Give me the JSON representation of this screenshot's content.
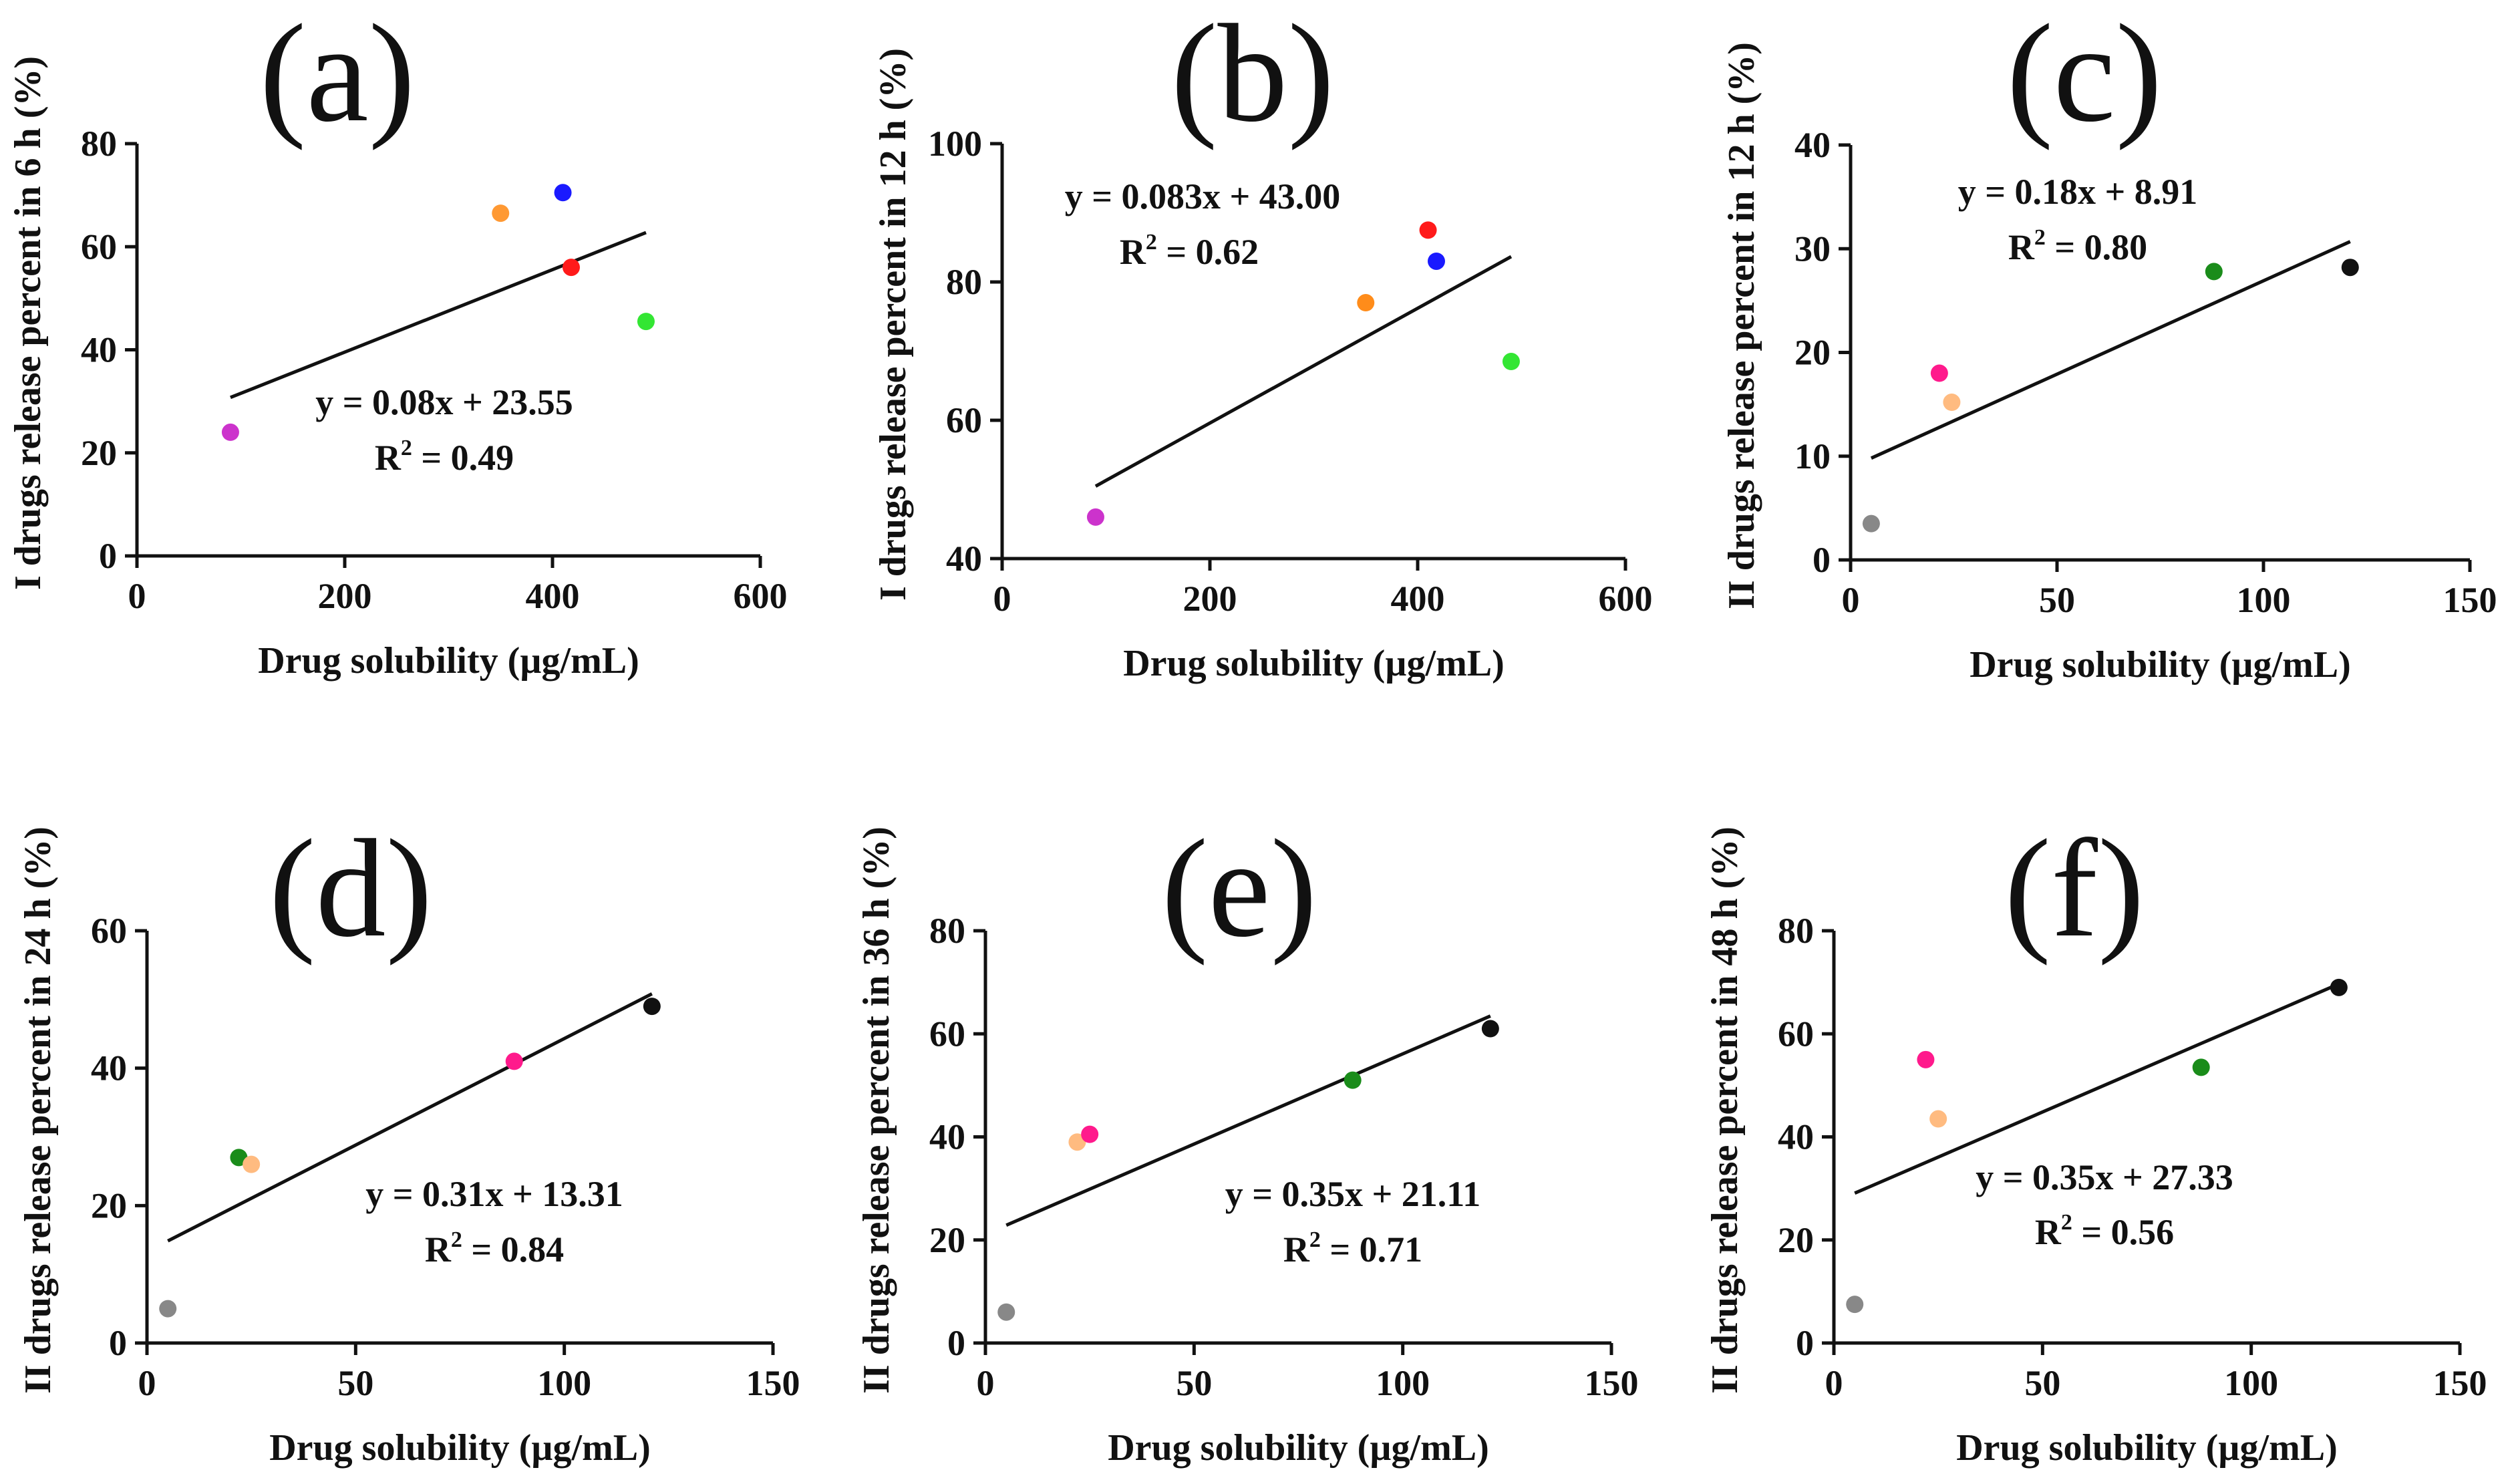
{
  "chart_data": [
    {
      "type": "scatter",
      "panel_label": "(a)",
      "title": "",
      "xlabel": "Drug solubility (µg/mL)",
      "ylabel": "I drugs release percent in 6 h (%)",
      "xlim": [
        0,
        600
      ],
      "ylim": [
        0,
        80
      ],
      "xticks": [
        "0",
        "200",
        "400",
        "600"
      ],
      "yticks": [
        "0",
        "20",
        "40",
        "60",
        "80"
      ],
      "points": [
        {
          "x": 90,
          "y": 24,
          "color": "#cc33cc"
        },
        {
          "x": 350,
          "y": 66.5,
          "color": "#ff9933"
        },
        {
          "x": 410,
          "y": 70.5,
          "color": "#1a1aff"
        },
        {
          "x": 418,
          "y": 56,
          "color": "#ff1a1a"
        },
        {
          "x": 490,
          "y": 45.5,
          "color": "#33e633"
        }
      ],
      "fit": {
        "slope": 0.08,
        "intercept": 23.55,
        "x_range": [
          90,
          490
        ]
      },
      "equation": "y = 0.08x + 23.55",
      "r2_prefix": "R",
      "r2_exp": "2",
      "r2_value": " = 0.49"
    },
    {
      "type": "scatter",
      "panel_label": "(b)",
      "title": "",
      "xlabel": "Drug solubility (µg/mL)",
      "ylabel": "I drugs release percent in 12 h (%)",
      "xlim": [
        0,
        600
      ],
      "ylim": [
        40,
        100
      ],
      "xticks": [
        "0",
        "200",
        "400",
        "600"
      ],
      "yticks": [
        "40",
        "60",
        "80",
        "100"
      ],
      "points": [
        {
          "x": 90,
          "y": 46,
          "color": "#cc33cc"
        },
        {
          "x": 350,
          "y": 77,
          "color": "#ff8c1a"
        },
        {
          "x": 410,
          "y": 87.5,
          "color": "#ff1a1a"
        },
        {
          "x": 418,
          "y": 83,
          "color": "#1a1aff"
        },
        {
          "x": 490,
          "y": 68.5,
          "color": "#33e633"
        }
      ],
      "fit": {
        "slope": 0.083,
        "intercept": 43.0,
        "x_range": [
          90,
          490
        ]
      },
      "equation": "y = 0.083x + 43.00",
      "r2_prefix": "R",
      "r2_exp": "2",
      "r2_value": " = 0.62"
    },
    {
      "type": "scatter",
      "panel_label": "(c)",
      "title": "",
      "xlabel": "Drug solubility (µg/mL)",
      "ylabel": "II drugs release percent in 12 h (%)",
      "xlim": [
        0,
        150
      ],
      "ylim": [
        0,
        40
      ],
      "xticks": [
        "0",
        "50",
        "100",
        "150"
      ],
      "yticks": [
        "0",
        "10",
        "20",
        "30",
        "40"
      ],
      "points": [
        {
          "x": 5,
          "y": 3.5,
          "color": "#888888"
        },
        {
          "x": 21.5,
          "y": 18,
          "color": "#ff1a8c"
        },
        {
          "x": 24.5,
          "y": 15.2,
          "color": "#ffbb80"
        },
        {
          "x": 88,
          "y": 27.8,
          "color": "#1a8c1a"
        },
        {
          "x": 121,
          "y": 28.2,
          "color": "#111111"
        }
      ],
      "fit": {
        "slope": 0.18,
        "intercept": 8.91,
        "x_range": [
          5,
          121
        ]
      },
      "equation": "y = 0.18x + 8.91",
      "r2_prefix": "R",
      "r2_exp": "2",
      "r2_value": " = 0.80"
    },
    {
      "type": "scatter",
      "panel_label": "(d)",
      "title": "",
      "xlabel": "Drug solubility (µg/mL)",
      "ylabel": "II drugs release percent in 24 h (%)",
      "xlim": [
        0,
        150
      ],
      "ylim": [
        0,
        60
      ],
      "xticks": [
        "0",
        "50",
        "100",
        "150"
      ],
      "yticks": [
        "0",
        "20",
        "40",
        "60"
      ],
      "points": [
        {
          "x": 5,
          "y": 5,
          "color": "#888888"
        },
        {
          "x": 22,
          "y": 27,
          "color": "#1a8c1a"
        },
        {
          "x": 25,
          "y": 26,
          "color": "#ffbb80"
        },
        {
          "x": 88,
          "y": 41,
          "color": "#ff1a8c"
        },
        {
          "x": 121,
          "y": 49,
          "color": "#111111"
        }
      ],
      "fit": {
        "slope": 0.31,
        "intercept": 13.31,
        "x_range": [
          5,
          121
        ]
      },
      "equation": "y = 0.31x + 13.31",
      "r2_prefix": "R",
      "r2_exp": "2",
      "r2_value": " = 0.84"
    },
    {
      "type": "scatter",
      "panel_label": "(e)",
      "title": "",
      "xlabel": "Drug solubility (µg/mL)",
      "ylabel": "II drugs release percent in 36 h (%)",
      "xlim": [
        0,
        150
      ],
      "ylim": [
        0,
        80
      ],
      "xticks": [
        "0",
        "50",
        "100",
        "150"
      ],
      "yticks": [
        "0",
        "20",
        "40",
        "60",
        "80"
      ],
      "points": [
        {
          "x": 5,
          "y": 6,
          "color": "#888888"
        },
        {
          "x": 22,
          "y": 39,
          "color": "#ffbb80"
        },
        {
          "x": 25,
          "y": 40.5,
          "color": "#ff1a8c"
        },
        {
          "x": 88,
          "y": 51,
          "color": "#1a8c1a"
        },
        {
          "x": 121,
          "y": 61,
          "color": "#111111"
        }
      ],
      "fit": {
        "slope": 0.35,
        "intercept": 21.11,
        "x_range": [
          5,
          121
        ]
      },
      "equation": "y = 0.35x + 21.11",
      "r2_prefix": "R",
      "r2_exp": "2",
      "r2_value": " = 0.71"
    },
    {
      "type": "scatter",
      "panel_label": "(f)",
      "title": "",
      "xlabel": "Drug solubility (µg/mL)",
      "ylabel": "II drugs release percent in 48 h (%)",
      "xlim": [
        0,
        150
      ],
      "ylim": [
        0,
        80
      ],
      "xticks": [
        "0",
        "50",
        "100",
        "150"
      ],
      "yticks": [
        "0",
        "20",
        "40",
        "60",
        "80"
      ],
      "points": [
        {
          "x": 5,
          "y": 7.5,
          "color": "#888888"
        },
        {
          "x": 22,
          "y": 55,
          "color": "#ff1a8c"
        },
        {
          "x": 25,
          "y": 43.5,
          "color": "#ffbb80"
        },
        {
          "x": 88,
          "y": 53.5,
          "color": "#1a8c1a"
        },
        {
          "x": 121,
          "y": 69,
          "color": "#111111"
        }
      ],
      "fit": {
        "slope": 0.35,
        "intercept": 27.33,
        "x_range": [
          5,
          121
        ]
      },
      "equation": "y = 0.35x + 27.33",
      "r2_prefix": "R",
      "r2_exp": "2",
      "r2_value": " = 0.56"
    }
  ]
}
